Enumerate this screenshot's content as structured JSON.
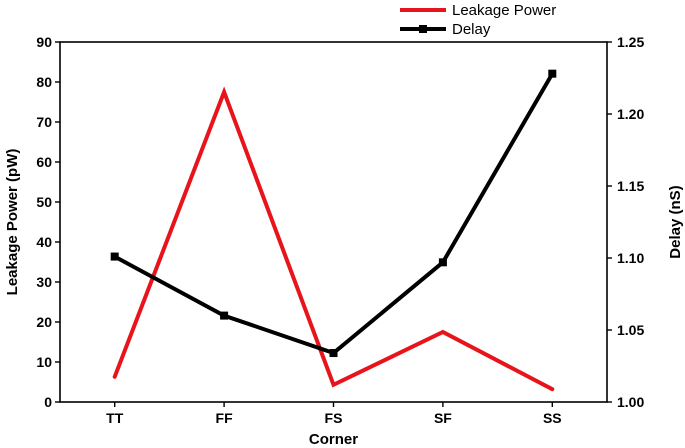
{
  "chart_data": {
    "type": "line",
    "categories": [
      "TT",
      "FF",
      "FS",
      "SF",
      "SS"
    ],
    "xlabel": "Corner",
    "y_left": {
      "label": "Leakage Power (pW)",
      "lim": [
        0,
        90
      ],
      "ticks": [
        "0",
        "10",
        "20",
        "30",
        "40",
        "50",
        "60",
        "70",
        "80",
        "90"
      ]
    },
    "y_right": {
      "label": "Delay (nS)",
      "lim": [
        1.0,
        1.25
      ],
      "ticks": [
        "1.00",
        "1.05",
        "1.10",
        "1.15",
        "1.20",
        "1.25"
      ]
    },
    "series": [
      {
        "name": "Leakage Power",
        "axis": "left",
        "color": "#e8141b",
        "marker": "none",
        "values": [
          6.3,
          77.5,
          4.3,
          17.5,
          3.2
        ]
      },
      {
        "name": "Delay",
        "axis": "right",
        "color": "#000000",
        "marker": "square",
        "values": [
          1.101,
          1.06,
          1.034,
          1.097,
          1.228
        ]
      }
    ],
    "legend_position": "top-right",
    "grid": false
  }
}
